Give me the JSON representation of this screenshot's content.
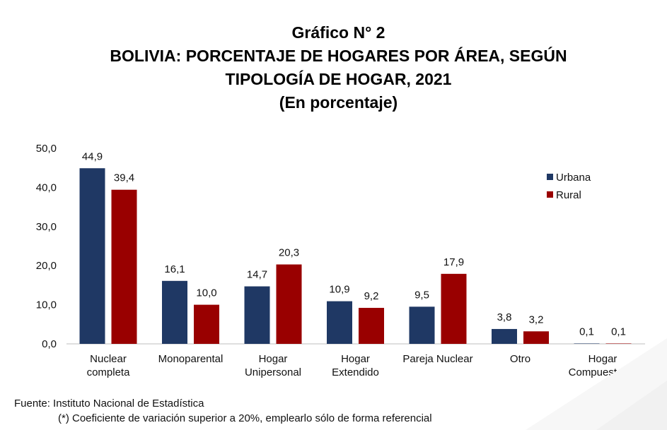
{
  "titles": {
    "line1": "Gráfico N° 2",
    "line2": "BOLIVIA: PORCENTAJE DE HOGARES POR ÁREA, SEGÚN",
    "line3": "TIPOLOGÍA DE HOGAR, 2021",
    "line4": "(En porcentaje)"
  },
  "notes": {
    "source": "Fuente: Instituto Nacional de Estadística",
    "footnote": "(*) Coeficiente de variación superior a 20%, emplearlo sólo de forma referencial"
  },
  "chart_data": {
    "type": "bar",
    "title": "BOLIVIA: PORCENTAJE DE HOGARES POR ÁREA, SEGÚN TIPOLOGÍA DE HOGAR, 2021",
    "subtitle": "(En porcentaje)",
    "categories": [
      [
        "Nuclear",
        "completa"
      ],
      [
        "Monoparental"
      ],
      [
        "Hogar",
        "Unipersonal"
      ],
      [
        "Hogar",
        "Extendido"
      ],
      [
        "Pareja Nuclear"
      ],
      [
        "Otro"
      ],
      [
        "Hogar",
        "Compuesto (*)"
      ]
    ],
    "series": [
      {
        "name": "Urbana",
        "color": "#1f3864",
        "values": [
          44.9,
          16.1,
          14.7,
          10.9,
          9.5,
          3.8,
          0.1
        ],
        "labels": [
          "44,9",
          "16,1",
          "14,7",
          "10,9",
          "9,5",
          "3,8",
          "0,1"
        ]
      },
      {
        "name": "Rural",
        "color": "#990000",
        "values": [
          39.4,
          10.0,
          20.3,
          9.2,
          17.9,
          3.2,
          0.1
        ],
        "labels": [
          "39,4",
          "10,0",
          "20,3",
          "9,2",
          "17,9",
          "3,2",
          "0,1"
        ]
      }
    ],
    "ylim": [
      0,
      50
    ],
    "yticks": [
      "0,0",
      "10,0",
      "20,0",
      "30,0",
      "40,0",
      "50,0"
    ],
    "xlabel": "",
    "ylabel": "",
    "grid": false,
    "legend": "top-right"
  }
}
